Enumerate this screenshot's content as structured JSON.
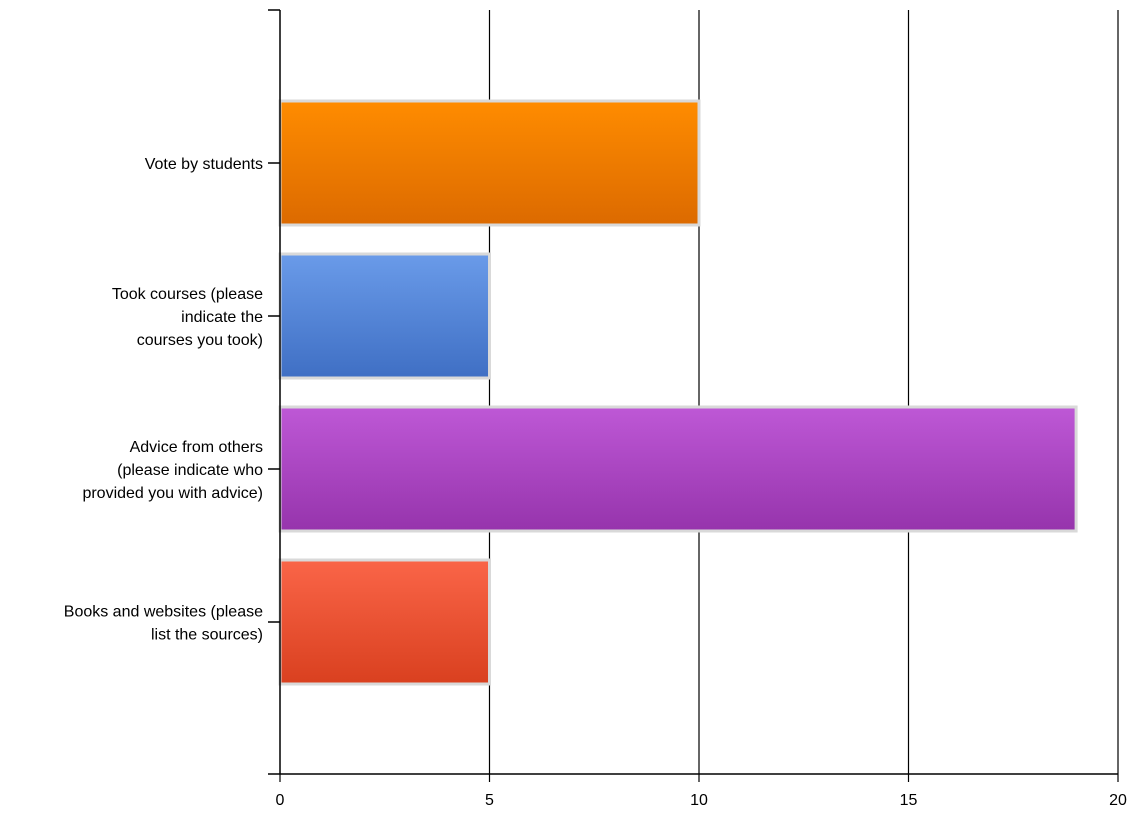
{
  "chart_data": {
    "type": "bar",
    "orientation": "horizontal",
    "title": "",
    "xlabel": "",
    "ylabel": "",
    "xlim": [
      0,
      20
    ],
    "x_ticks": [
      0,
      5,
      10,
      15,
      20
    ],
    "grid": "vertical lines at major ticks",
    "legend": "none",
    "categories": [
      "Vote by students",
      "Took courses (please indicate the courses you took)",
      "Advice from others (please indicate who provided you with advice)",
      "Books and websites (please list the sources)"
    ],
    "category_label_lines": [
      [
        "Vote by students"
      ],
      [
        "Took courses (please",
        "indicate the",
        "courses you took)"
      ],
      [
        "Advice from others",
        "(please indicate who",
        "provided you with advice)"
      ],
      [
        "Books and websites (please",
        "list the sources)"
      ]
    ],
    "values": [
      10,
      5,
      19,
      5
    ],
    "colors": [
      {
        "top": "#ff8c00",
        "bottom": "#dc6a00"
      },
      {
        "top": "#6a9be9",
        "bottom": "#3f6fc4"
      },
      {
        "top": "#be58d6",
        "bottom": "#9634ac"
      },
      {
        "top": "#fa6548",
        "bottom": "#d9401f"
      }
    ]
  }
}
